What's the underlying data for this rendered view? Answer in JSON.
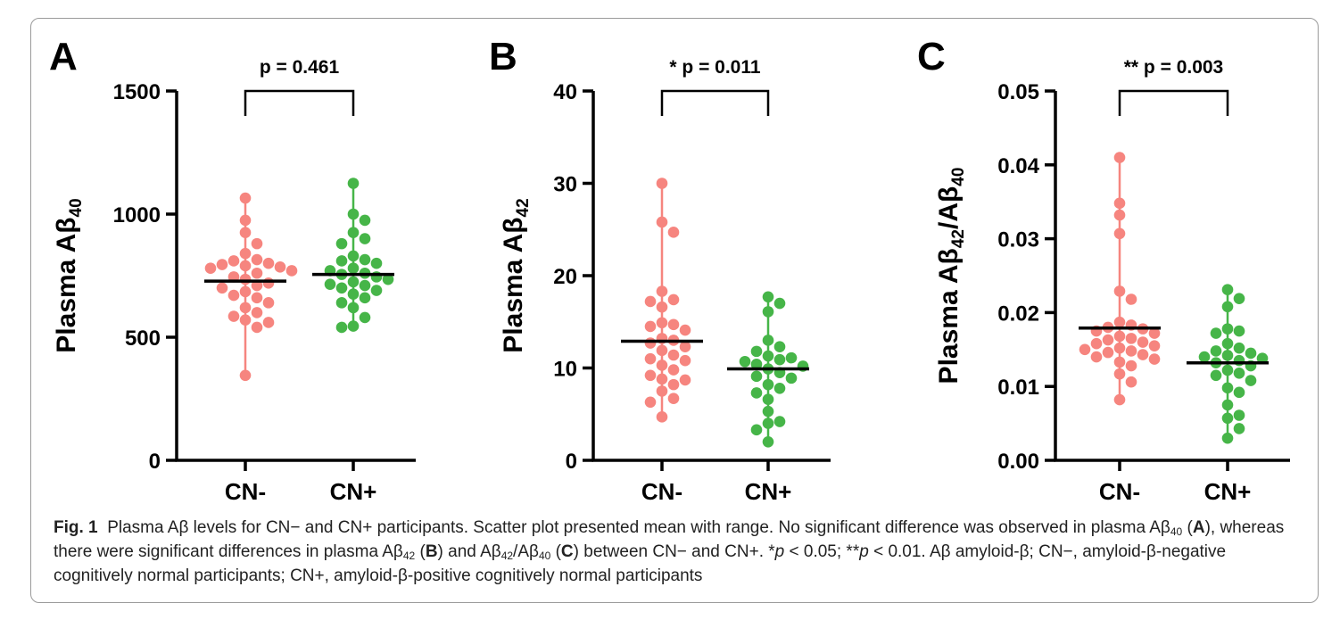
{
  "colors": {
    "cn_neg": "#F6857F",
    "cn_pos": "#46B548",
    "axis": "#000000",
    "mean": "#000000"
  },
  "chart_data": [
    {
      "panel": "A",
      "type": "scatter",
      "ylabel_base": "Plasma Aβ",
      "ylabel_sub": "40",
      "ylim": [
        0,
        1500
      ],
      "yticks": [
        0,
        500,
        1000,
        1500
      ],
      "ytick_labels": [
        "0",
        "500",
        "1000",
        "1500"
      ],
      "categories": [
        "CN-",
        "CN+"
      ],
      "annotation": "p = 0.461",
      "series": [
        {
          "name": "CN-",
          "mean": 728,
          "range": [
            345,
            1065
          ],
          "values": [
            1065,
            975,
            925,
            880,
            840,
            815,
            810,
            800,
            795,
            790,
            785,
            780,
            770,
            760,
            745,
            735,
            720,
            710,
            700,
            685,
            670,
            660,
            640,
            620,
            600,
            585,
            570,
            560,
            540,
            345
          ]
        },
        {
          "name": "CN+",
          "mean": 755,
          "range": [
            540,
            1125
          ],
          "values": [
            1125,
            1000,
            975,
            925,
            900,
            880,
            830,
            815,
            810,
            800,
            780,
            770,
            760,
            755,
            745,
            735,
            725,
            715,
            710,
            700,
            690,
            675,
            660,
            640,
            620,
            580,
            545,
            540
          ]
        }
      ]
    },
    {
      "panel": "B",
      "type": "scatter",
      "ylabel_base": "Plasma Aβ",
      "ylabel_sub": "42",
      "ylim": [
        0,
        40
      ],
      "yticks": [
        0,
        10,
        20,
        30,
        40
      ],
      "ytick_labels": [
        "0",
        "10",
        "20",
        "30",
        "40"
      ],
      "categories": [
        "CN-",
        "CN+"
      ],
      "annotation": "* p = 0.011",
      "series": [
        {
          "name": "CN-",
          "mean": 12.9,
          "range": [
            4.7,
            30.0
          ],
          "values": [
            30.0,
            25.8,
            24.7,
            18.3,
            17.4,
            17.2,
            16.6,
            14.9,
            14.7,
            14.5,
            14.1,
            13.2,
            13.0,
            12.7,
            12.3,
            11.9,
            11.4,
            11.0,
            10.8,
            10.3,
            9.8,
            9.2,
            8.8,
            8.7,
            8.2,
            7.5,
            6.7,
            6.3,
            4.7
          ]
        },
        {
          "name": "CN+",
          "mean": 9.9,
          "range": [
            2.0,
            17.7
          ],
          "values": [
            17.7,
            17.0,
            16.1,
            13.0,
            12.3,
            11.8,
            11.3,
            11.1,
            10.9,
            10.7,
            10.4,
            10.2,
            9.9,
            9.5,
            9.1,
            8.9,
            8.2,
            7.8,
            7.3,
            6.6,
            5.3,
            4.2,
            4.0,
            3.3,
            2.0
          ]
        }
      ]
    },
    {
      "panel": "C",
      "type": "scatter",
      "ylabel_base": "Plasma Aβ",
      "ylabel_sub": "42",
      "ylabel_mid": "/Aβ",
      "ylabel_sub2": "40",
      "ylim": [
        0,
        0.05
      ],
      "yticks": [
        0,
        0.01,
        0.02,
        0.03,
        0.04,
        0.05
      ],
      "ytick_labels": [
        "0.00",
        "0.01",
        "0.02",
        "0.03",
        "0.04",
        "0.05"
      ],
      "categories": [
        "CN-",
        "CN+"
      ],
      "annotation": "** p = 0.003",
      "series": [
        {
          "name": "CN-",
          "mean": 0.0179,
          "range": [
            0.0082,
            0.041
          ],
          "values": [
            0.041,
            0.0348,
            0.0332,
            0.0307,
            0.0229,
            0.0218,
            0.0187,
            0.0183,
            0.018,
            0.0178,
            0.0175,
            0.0172,
            0.0168,
            0.0165,
            0.0163,
            0.016,
            0.0158,
            0.0155,
            0.0152,
            0.015,
            0.0148,
            0.0146,
            0.0143,
            0.014,
            0.0137,
            0.0133,
            0.0128,
            0.0117,
            0.0106,
            0.0082
          ]
        },
        {
          "name": "CN+",
          "mean": 0.0132,
          "range": [
            0.003,
            0.0231
          ],
          "values": [
            0.0231,
            0.0219,
            0.0208,
            0.0178,
            0.0175,
            0.0172,
            0.0158,
            0.0152,
            0.0148,
            0.0145,
            0.0142,
            0.014,
            0.0138,
            0.0135,
            0.0132,
            0.0128,
            0.0122,
            0.0118,
            0.0115,
            0.0108,
            0.0098,
            0.0092,
            0.0075,
            0.0061,
            0.0057,
            0.0043,
            0.003
          ]
        }
      ]
    }
  ],
  "caption": {
    "label": "Fig. 1",
    "line1": "Plasma Aβ levels for CN− and CN+ participants. Scatter plot presented mean with range. No significant difference was observed in plasma Aβ",
    "sub40": "40",
    "sub42": "42",
    "seg_a": " (",
    "panel_a": "A",
    "seg_b": "), whereas there were significant differences in plasma Aβ",
    "seg_c": " (",
    "panel_b": "B",
    "seg_d": ") and Aβ",
    "seg_e": "/Aβ",
    "seg_f": " (",
    "panel_c": "C",
    "seg_g": ") between CN− and CN+. *",
    "p1": "p",
    "seg_h": " < 0.05; **",
    "p2": "p",
    "seg_i": " < 0.01. Aβ amyloid-β; CN−, amyloid-β-negative cognitively normal participants; CN+, amyloid-β-positive cognitively normal participants"
  }
}
